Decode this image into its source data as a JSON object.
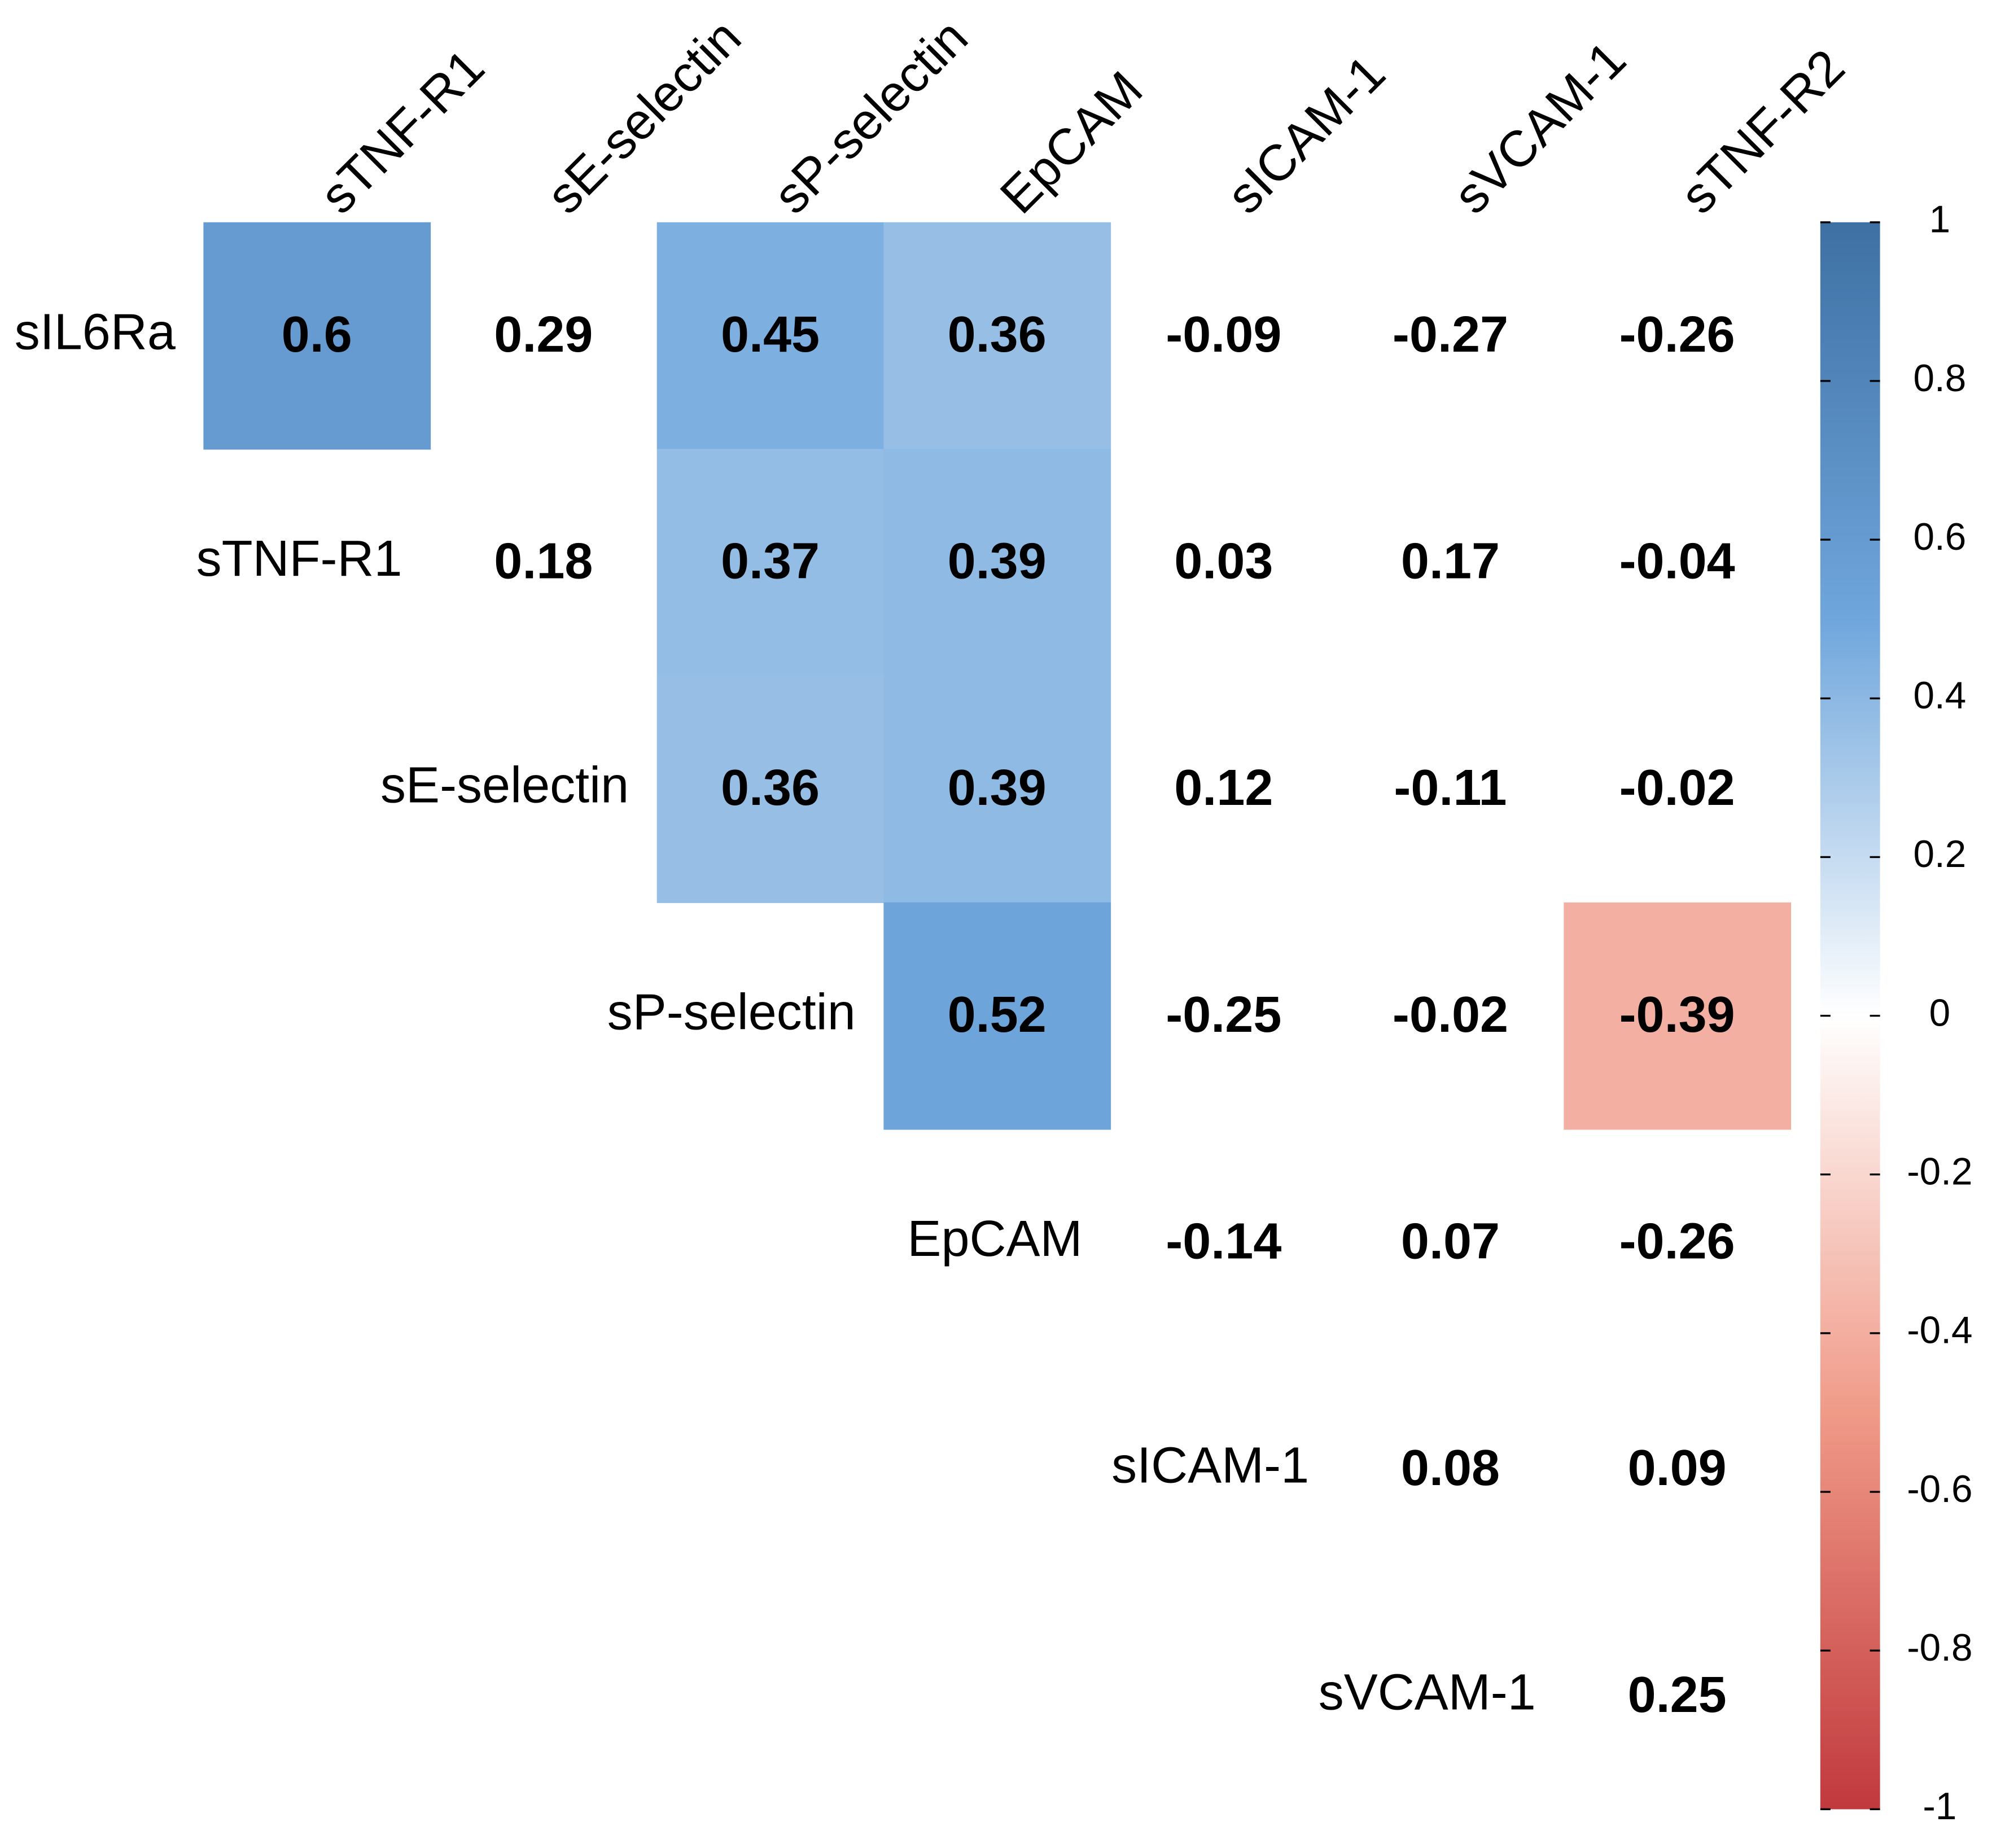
{
  "chart_data": {
    "type": "heatmap",
    "rows": [
      "sIL6Ra",
      "sTNF-R1",
      "sE-selectin",
      "sP-selectin",
      "EpCAM",
      "sICAM-1",
      "sVCAM-1"
    ],
    "columns": [
      "sTNF-R1",
      "sE-selectin",
      "sP-selectin",
      "EpCAM",
      "sICAM-1",
      "sVCAM-1",
      "sTNF-R2"
    ],
    "values": [
      [
        0.6,
        0.29,
        0.45,
        0.36,
        -0.09,
        -0.27,
        -0.26
      ],
      [
        null,
        0.18,
        0.37,
        0.39,
        0.03,
        0.17,
        -0.04
      ],
      [
        null,
        null,
        0.36,
        0.39,
        0.12,
        -0.11,
        -0.02
      ],
      [
        null,
        null,
        null,
        0.52,
        -0.25,
        -0.02,
        -0.39
      ],
      [
        null,
        null,
        null,
        null,
        -0.14,
        0.07,
        -0.26
      ],
      [
        null,
        null,
        null,
        null,
        null,
        0.08,
        0.09
      ],
      [
        null,
        null,
        null,
        null,
        null,
        null,
        0.25
      ]
    ],
    "shaded": [
      [
        true,
        false,
        true,
        true,
        false,
        false,
        false
      ],
      [
        false,
        false,
        true,
        true,
        false,
        false,
        false
      ],
      [
        false,
        false,
        true,
        true,
        false,
        false,
        false
      ],
      [
        false,
        false,
        false,
        true,
        false,
        false,
        true
      ],
      [
        false,
        false,
        false,
        false,
        false,
        false,
        false
      ],
      [
        false,
        false,
        false,
        false,
        false,
        false,
        false
      ],
      [
        false,
        false,
        false,
        false,
        false,
        false,
        false
      ]
    ],
    "colors": [
      "#c1393d",
      "#f09a88",
      "#ffffff",
      "#6fa6dc",
      "#3e70a3"
    ],
    "zlim": [
      -1,
      1
    ],
    "zticks": [
      -1,
      -0.8,
      -0.6,
      -0.4,
      -0.2,
      0,
      0.2,
      0.4,
      0.6,
      0.8,
      1
    ]
  }
}
